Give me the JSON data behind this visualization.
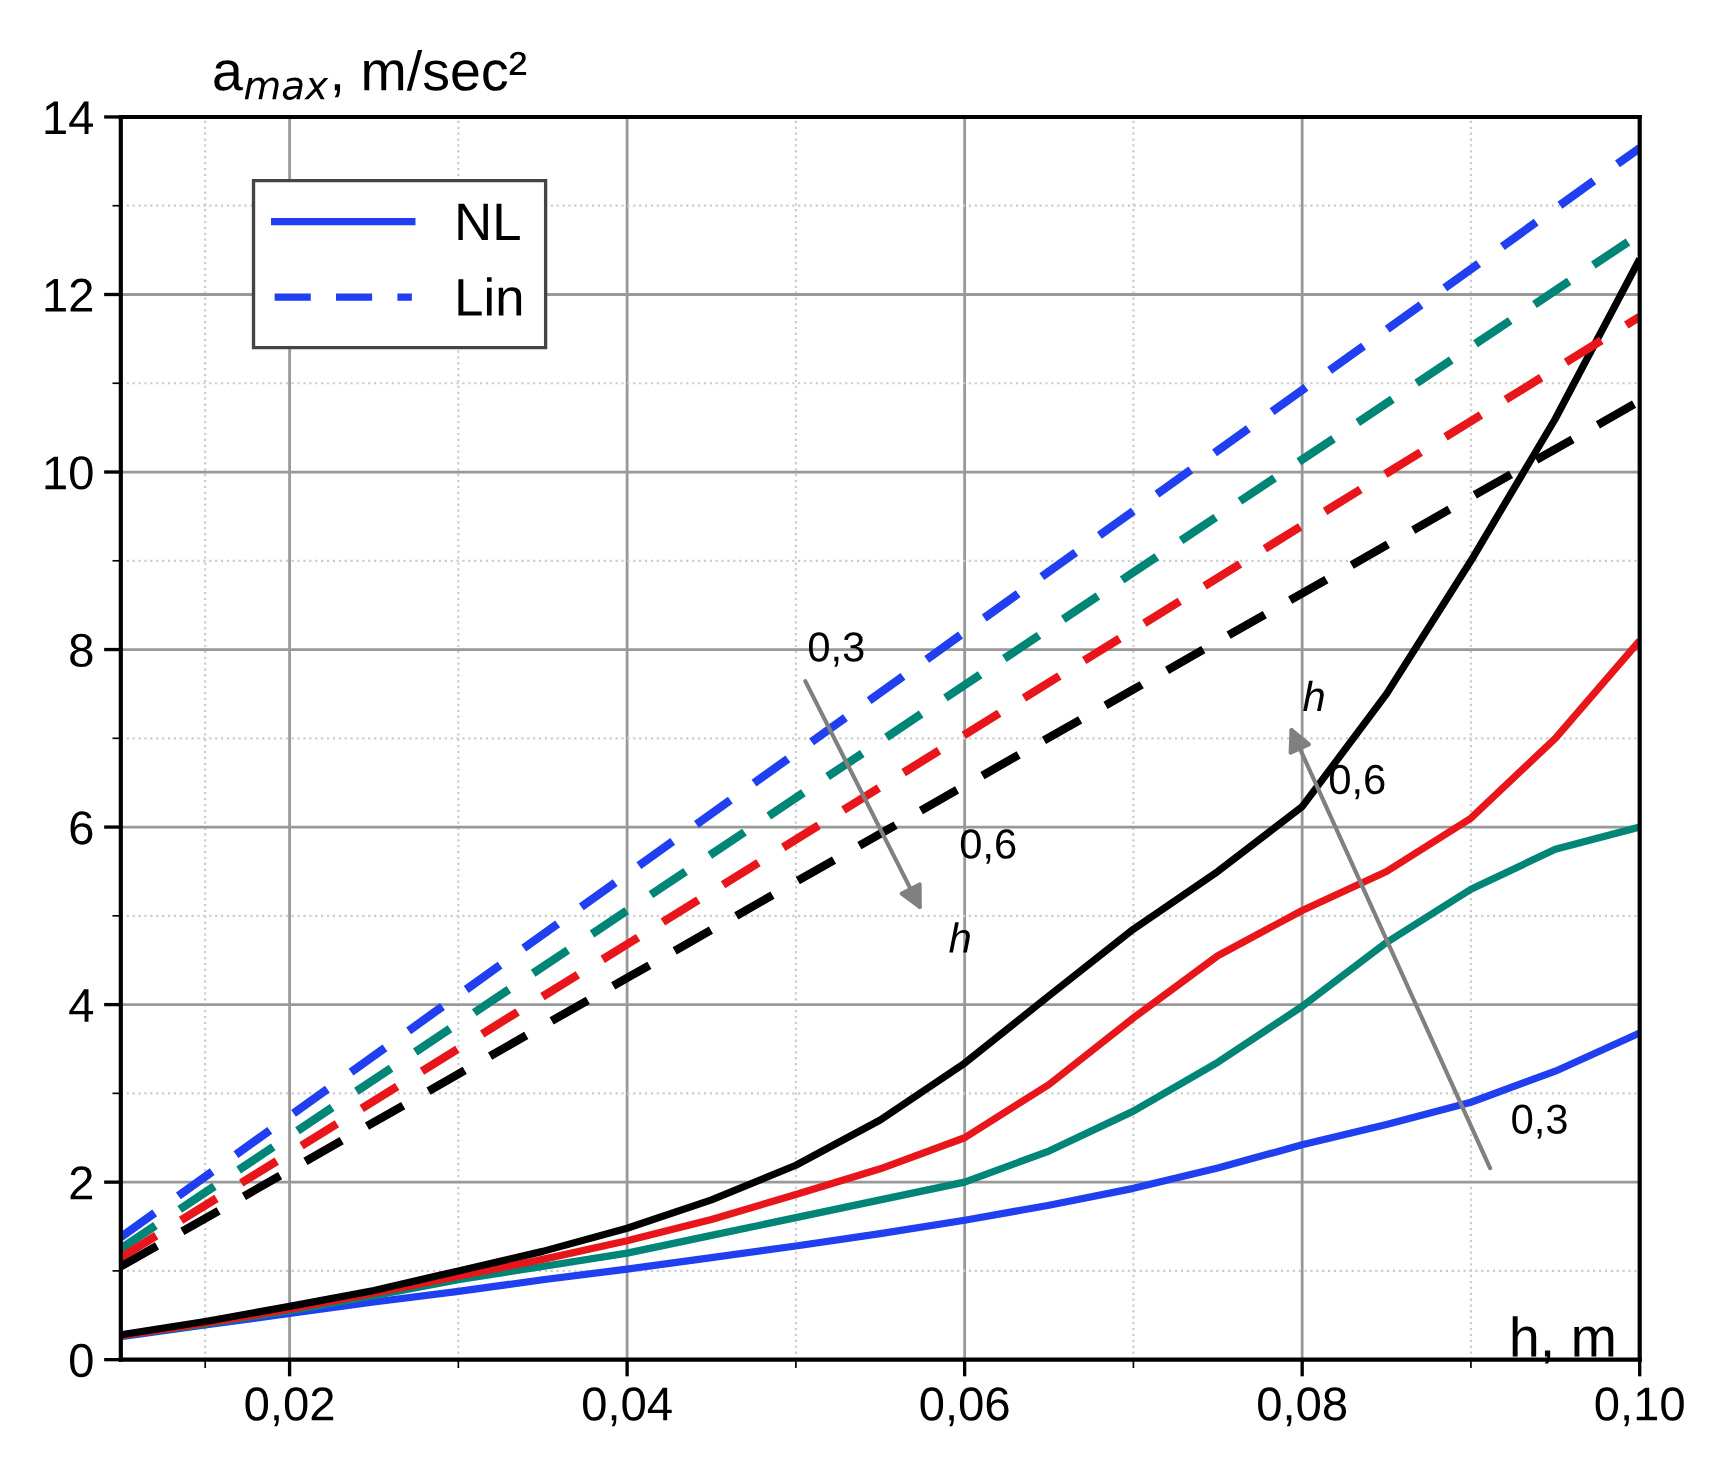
{
  "chart_data": {
    "type": "line",
    "xlabel": "h, m",
    "ylabel": "a$_{max}$, m/sec²",
    "x": [
      0.01,
      0.015,
      0.02,
      0.025,
      0.03,
      0.035,
      0.04,
      0.045,
      0.05,
      0.055,
      0.06,
      0.065,
      0.07,
      0.075,
      0.08,
      0.085,
      0.09,
      0.095,
      0.1
    ],
    "series": [
      {
        "name": "NL",
        "color": "#1f3ff0",
        "line_style": "solid",
        "values": [
          0.26,
          0.39,
          0.52,
          0.65,
          0.77,
          0.9,
          1.02,
          1.15,
          1.28,
          1.42,
          1.57,
          1.74,
          1.93,
          2.16,
          2.42,
          2.65,
          2.9,
          3.25,
          3.68
        ]
      },
      {
        "color": "#008577",
        "line_style": "solid",
        "values": [
          0.27,
          0.4,
          0.55,
          0.72,
          0.9,
          1.05,
          1.2,
          1.4,
          1.6,
          1.8,
          2.0,
          2.35,
          2.8,
          3.35,
          3.98,
          4.7,
          5.3,
          5.75,
          6.0
        ]
      },
      {
        "color": "#e8161b",
        "line_style": "solid",
        "values": [
          0.27,
          0.41,
          0.57,
          0.75,
          0.94,
          1.13,
          1.34,
          1.58,
          1.86,
          2.15,
          2.5,
          3.1,
          3.85,
          4.55,
          5.06,
          5.5,
          6.1,
          7.0,
          8.1
        ]
      },
      {
        "color": "#000000",
        "line_style": "solid",
        "values": [
          0.28,
          0.43,
          0.6,
          0.78,
          1.0,
          1.22,
          1.48,
          1.8,
          2.19,
          2.7,
          3.34,
          4.1,
          4.85,
          5.5,
          6.23,
          7.5,
          9.0,
          10.6,
          12.4
        ]
      },
      {
        "name": "Lin",
        "color": "#1f3ff0",
        "line_style": "dashed",
        "x": [
          0.01,
          0.04,
          0.07,
          0.1
        ],
        "values": [
          1.38,
          5.47,
          9.56,
          13.65
        ]
      },
      {
        "color": "#008577",
        "line_style": "dashed",
        "x": [
          0.01,
          0.04,
          0.07,
          0.1
        ],
        "values": [
          1.25,
          5.06,
          8.87,
          12.68
        ]
      },
      {
        "color": "#e8161b",
        "line_style": "dashed",
        "x": [
          0.01,
          0.04,
          0.07,
          0.1
        ],
        "values": [
          1.15,
          4.68,
          8.22,
          11.75
        ]
      },
      {
        "color": "#000000",
        "line_style": "dashed",
        "x": [
          0.01,
          0.04,
          0.07,
          0.1
        ],
        "values": [
          1.05,
          4.3,
          7.55,
          10.8
        ]
      }
    ],
    "xlim": [
      0.01,
      0.1
    ],
    "xticks": [
      {
        "value": 0.02,
        "label": "0,02"
      },
      {
        "value": 0.04,
        "label": "0,04"
      },
      {
        "value": 0.06,
        "label": "0,06"
      },
      {
        "value": 0.08,
        "label": "0,08"
      },
      {
        "value": 0.1,
        "label": "0,10"
      }
    ],
    "ylim": [
      0,
      14
    ],
    "yticks": [
      0,
      2,
      4,
      6,
      8,
      10,
      12,
      14
    ],
    "grid": true,
    "legend": "top left",
    "annotations": [
      "0,3",
      "0,6",
      "h",
      "0,3",
      "0,6",
      "h"
    ]
  }
}
